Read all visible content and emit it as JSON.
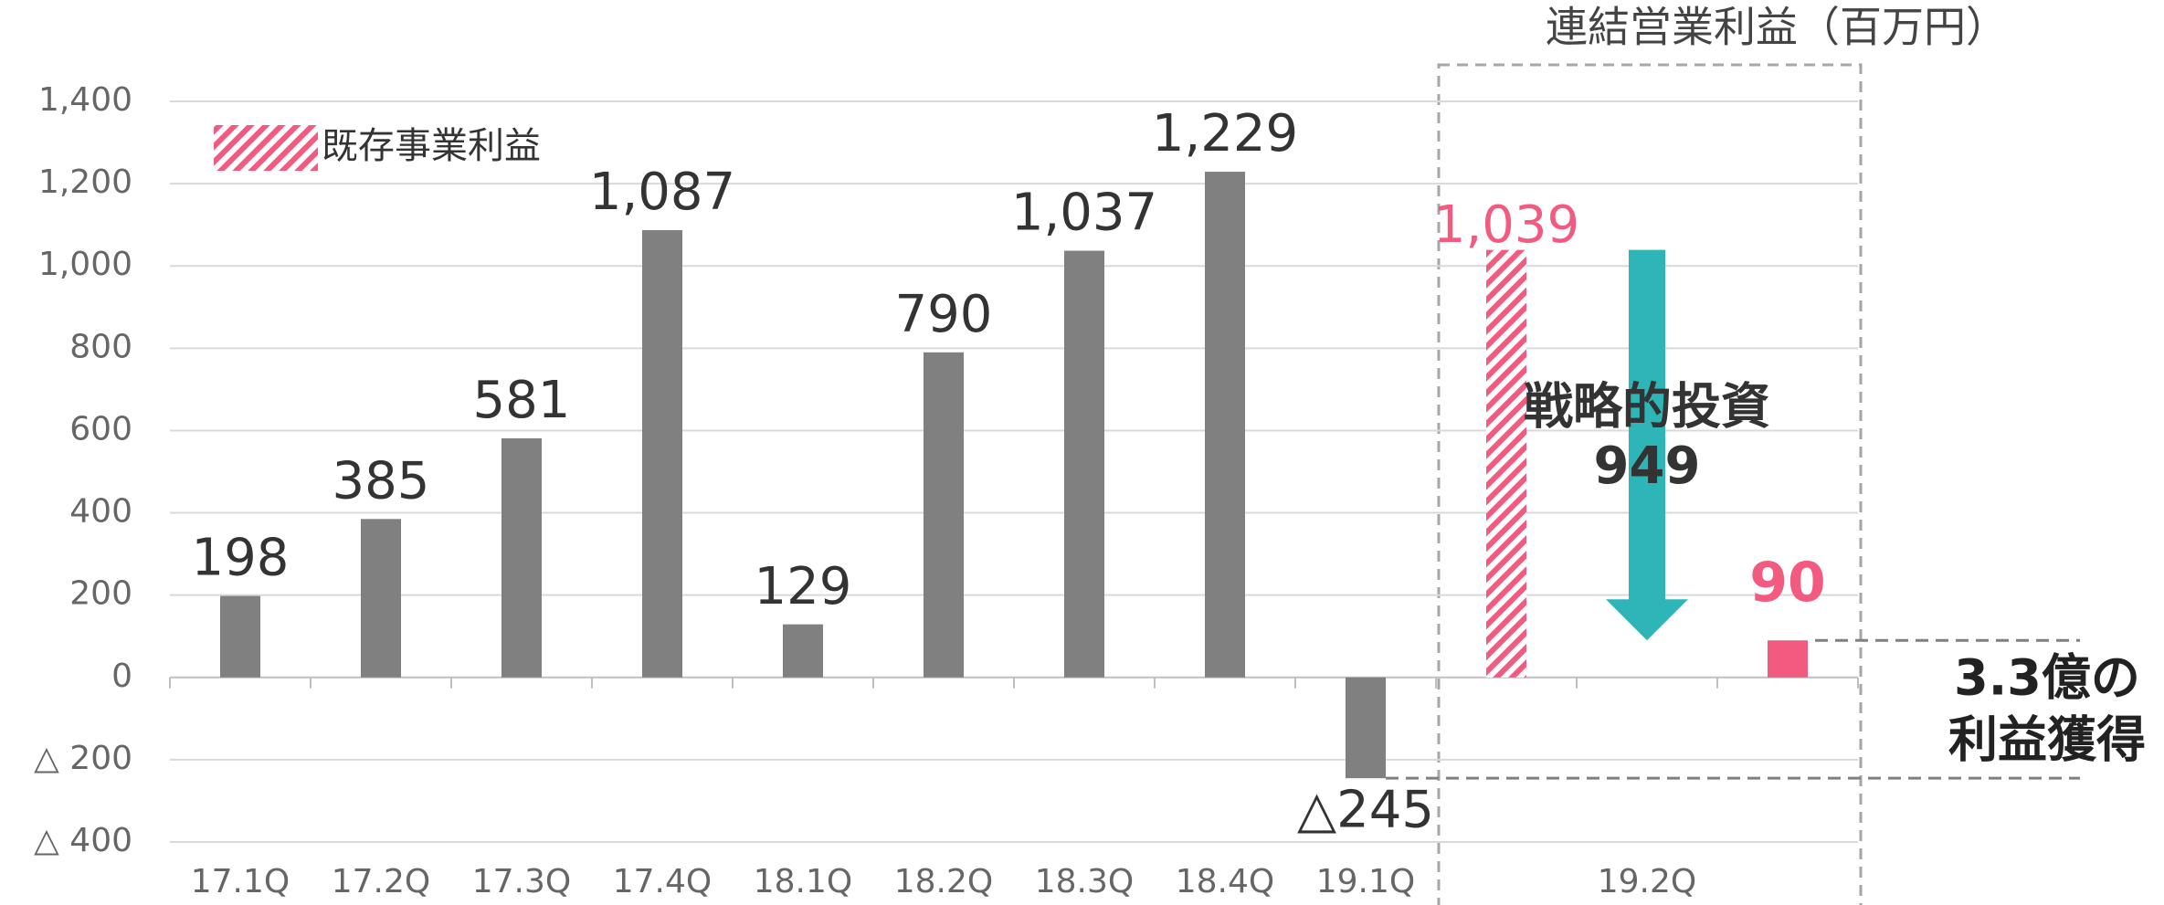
{
  "chart_data": {
    "type": "bar",
    "title": "連結営業利益（百万円）",
    "categories": [
      "17.1Q",
      "17.2Q",
      "17.3Q",
      "17.4Q",
      "18.1Q",
      "18.2Q",
      "18.3Q",
      "18.4Q",
      "19.1Q"
    ],
    "values": [
      198,
      385,
      581,
      1087,
      129,
      790,
      1037,
      1229,
      -245
    ],
    "value_labels": [
      "198",
      "385",
      "581",
      "1,087",
      "129",
      "790",
      "1,037",
      "1,229",
      "△245"
    ],
    "color": "#808080",
    "ylim": [
      -400,
      1400
    ],
    "yticks": [
      {
        "value": -400,
        "label": "△ 400"
      },
      {
        "value": -200,
        "label": "△ 200"
      },
      0,
      200,
      400,
      600,
      800,
      {
        "value": 1000,
        "label": "1,000"
      },
      {
        "value": 1200,
        "label": "1,200"
      },
      {
        "value": 1400,
        "label": "1,400"
      }
    ],
    "grid": true,
    "breakdown": {
      "category": "19.2Q",
      "existing": {
        "name": "既存事業利益",
        "value": 1039,
        "value_label": "1,039",
        "color": "#f25a7f"
      },
      "investment": {
        "name": "戦略的投資",
        "value": 949,
        "color": "#2eb5b8"
      },
      "result": {
        "value": 90,
        "color": "#f25a7f"
      },
      "annotation": [
        "3.3億の",
        "利益獲得"
      ]
    }
  }
}
